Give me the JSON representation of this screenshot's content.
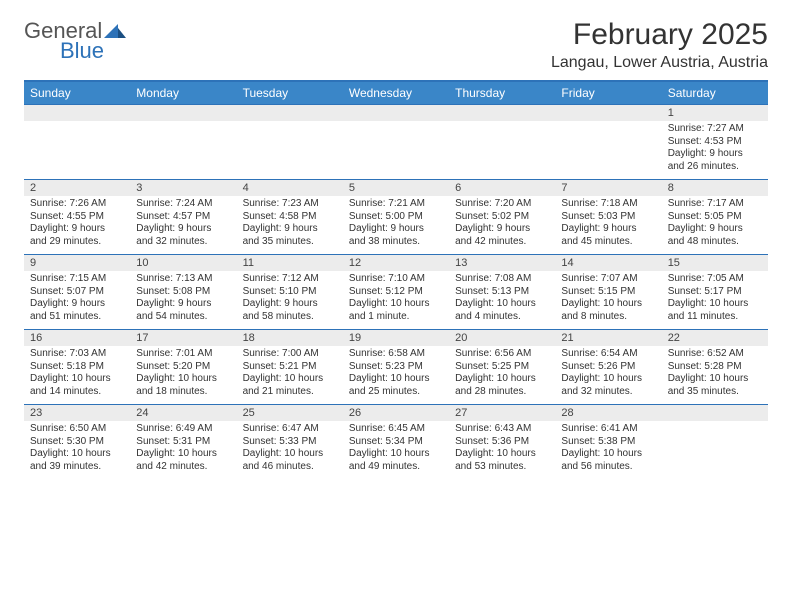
{
  "logo": {
    "general": "General",
    "blue": "Blue"
  },
  "title": {
    "month": "February 2025",
    "location": "Langau, Lower Austria, Austria"
  },
  "colors": {
    "accent": "#3a86c8",
    "rule": "#2d72b8",
    "daynum_bg": "#ececec",
    "text": "#333333"
  },
  "dow": [
    "Sunday",
    "Monday",
    "Tuesday",
    "Wednesday",
    "Thursday",
    "Friday",
    "Saturday"
  ],
  "weeks": [
    [
      {
        "n": "",
        "sr": "",
        "ss": "",
        "dl": ""
      },
      {
        "n": "",
        "sr": "",
        "ss": "",
        "dl": ""
      },
      {
        "n": "",
        "sr": "",
        "ss": "",
        "dl": ""
      },
      {
        "n": "",
        "sr": "",
        "ss": "",
        "dl": ""
      },
      {
        "n": "",
        "sr": "",
        "ss": "",
        "dl": ""
      },
      {
        "n": "",
        "sr": "",
        "ss": "",
        "dl": ""
      },
      {
        "n": "1",
        "sr": "Sunrise: 7:27 AM",
        "ss": "Sunset: 4:53 PM",
        "dl": "Daylight: 9 hours and 26 minutes."
      }
    ],
    [
      {
        "n": "2",
        "sr": "Sunrise: 7:26 AM",
        "ss": "Sunset: 4:55 PM",
        "dl": "Daylight: 9 hours and 29 minutes."
      },
      {
        "n": "3",
        "sr": "Sunrise: 7:24 AM",
        "ss": "Sunset: 4:57 PM",
        "dl": "Daylight: 9 hours and 32 minutes."
      },
      {
        "n": "4",
        "sr": "Sunrise: 7:23 AM",
        "ss": "Sunset: 4:58 PM",
        "dl": "Daylight: 9 hours and 35 minutes."
      },
      {
        "n": "5",
        "sr": "Sunrise: 7:21 AM",
        "ss": "Sunset: 5:00 PM",
        "dl": "Daylight: 9 hours and 38 minutes."
      },
      {
        "n": "6",
        "sr": "Sunrise: 7:20 AM",
        "ss": "Sunset: 5:02 PM",
        "dl": "Daylight: 9 hours and 42 minutes."
      },
      {
        "n": "7",
        "sr": "Sunrise: 7:18 AM",
        "ss": "Sunset: 5:03 PM",
        "dl": "Daylight: 9 hours and 45 minutes."
      },
      {
        "n": "8",
        "sr": "Sunrise: 7:17 AM",
        "ss": "Sunset: 5:05 PM",
        "dl": "Daylight: 9 hours and 48 minutes."
      }
    ],
    [
      {
        "n": "9",
        "sr": "Sunrise: 7:15 AM",
        "ss": "Sunset: 5:07 PM",
        "dl": "Daylight: 9 hours and 51 minutes."
      },
      {
        "n": "10",
        "sr": "Sunrise: 7:13 AM",
        "ss": "Sunset: 5:08 PM",
        "dl": "Daylight: 9 hours and 54 minutes."
      },
      {
        "n": "11",
        "sr": "Sunrise: 7:12 AM",
        "ss": "Sunset: 5:10 PM",
        "dl": "Daylight: 9 hours and 58 minutes."
      },
      {
        "n": "12",
        "sr": "Sunrise: 7:10 AM",
        "ss": "Sunset: 5:12 PM",
        "dl": "Daylight: 10 hours and 1 minute."
      },
      {
        "n": "13",
        "sr": "Sunrise: 7:08 AM",
        "ss": "Sunset: 5:13 PM",
        "dl": "Daylight: 10 hours and 4 minutes."
      },
      {
        "n": "14",
        "sr": "Sunrise: 7:07 AM",
        "ss": "Sunset: 5:15 PM",
        "dl": "Daylight: 10 hours and 8 minutes."
      },
      {
        "n": "15",
        "sr": "Sunrise: 7:05 AM",
        "ss": "Sunset: 5:17 PM",
        "dl": "Daylight: 10 hours and 11 minutes."
      }
    ],
    [
      {
        "n": "16",
        "sr": "Sunrise: 7:03 AM",
        "ss": "Sunset: 5:18 PM",
        "dl": "Daylight: 10 hours and 14 minutes."
      },
      {
        "n": "17",
        "sr": "Sunrise: 7:01 AM",
        "ss": "Sunset: 5:20 PM",
        "dl": "Daylight: 10 hours and 18 minutes."
      },
      {
        "n": "18",
        "sr": "Sunrise: 7:00 AM",
        "ss": "Sunset: 5:21 PM",
        "dl": "Daylight: 10 hours and 21 minutes."
      },
      {
        "n": "19",
        "sr": "Sunrise: 6:58 AM",
        "ss": "Sunset: 5:23 PM",
        "dl": "Daylight: 10 hours and 25 minutes."
      },
      {
        "n": "20",
        "sr": "Sunrise: 6:56 AM",
        "ss": "Sunset: 5:25 PM",
        "dl": "Daylight: 10 hours and 28 minutes."
      },
      {
        "n": "21",
        "sr": "Sunrise: 6:54 AM",
        "ss": "Sunset: 5:26 PM",
        "dl": "Daylight: 10 hours and 32 minutes."
      },
      {
        "n": "22",
        "sr": "Sunrise: 6:52 AM",
        "ss": "Sunset: 5:28 PM",
        "dl": "Daylight: 10 hours and 35 minutes."
      }
    ],
    [
      {
        "n": "23",
        "sr": "Sunrise: 6:50 AM",
        "ss": "Sunset: 5:30 PM",
        "dl": "Daylight: 10 hours and 39 minutes."
      },
      {
        "n": "24",
        "sr": "Sunrise: 6:49 AM",
        "ss": "Sunset: 5:31 PM",
        "dl": "Daylight: 10 hours and 42 minutes."
      },
      {
        "n": "25",
        "sr": "Sunrise: 6:47 AM",
        "ss": "Sunset: 5:33 PM",
        "dl": "Daylight: 10 hours and 46 minutes."
      },
      {
        "n": "26",
        "sr": "Sunrise: 6:45 AM",
        "ss": "Sunset: 5:34 PM",
        "dl": "Daylight: 10 hours and 49 minutes."
      },
      {
        "n": "27",
        "sr": "Sunrise: 6:43 AM",
        "ss": "Sunset: 5:36 PM",
        "dl": "Daylight: 10 hours and 53 minutes."
      },
      {
        "n": "28",
        "sr": "Sunrise: 6:41 AM",
        "ss": "Sunset: 5:38 PM",
        "dl": "Daylight: 10 hours and 56 minutes."
      },
      {
        "n": "",
        "sr": "",
        "ss": "",
        "dl": ""
      }
    ]
  ]
}
